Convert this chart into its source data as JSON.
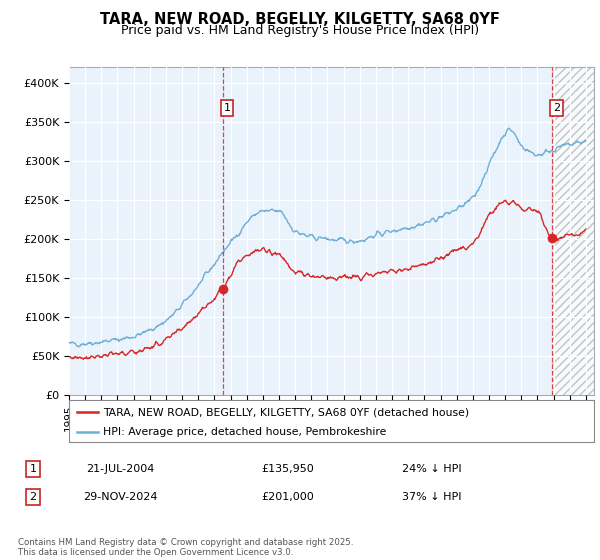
{
  "title": "TARA, NEW ROAD, BEGELLY, KILGETTY, SA68 0YF",
  "subtitle": "Price paid vs. HM Land Registry's House Price Index (HPI)",
  "ylim": [
    0,
    420000
  ],
  "xlim_start": 1995.0,
  "xlim_end": 2027.5,
  "yticks": [
    0,
    50000,
    100000,
    150000,
    200000,
    250000,
    300000,
    350000,
    400000
  ],
  "ytick_labels": [
    "£0",
    "£50K",
    "£100K",
    "£150K",
    "£200K",
    "£250K",
    "£300K",
    "£350K",
    "£400K"
  ],
  "hpi_color": "#6baed6",
  "price_color": "#d62728",
  "vline1_x": 2004.54,
  "vline2_x": 2024.91,
  "marker1_x": 2004.54,
  "marker1_y": 135950,
  "marker2_x": 2024.91,
  "marker2_y": 201000,
  "legend_label_price": "TARA, NEW ROAD, BEGELLY, KILGETTY, SA68 0YF (detached house)",
  "legend_label_hpi": "HPI: Average price, detached house, Pembrokeshire",
  "table_row1": [
    "1",
    "21-JUL-2004",
    "£135,950",
    "24% ↓ HPI"
  ],
  "table_row2": [
    "2",
    "29-NOV-2024",
    "£201,000",
    "37% ↓ HPI"
  ],
  "footer": "Contains HM Land Registry data © Crown copyright and database right 2025.\nThis data is licensed under the Open Government Licence v3.0.",
  "bg_color": "#ffffff",
  "plot_bg_color": "#eaf3fb",
  "grid_color": "#ffffff",
  "hatch_color": "#cccccc"
}
